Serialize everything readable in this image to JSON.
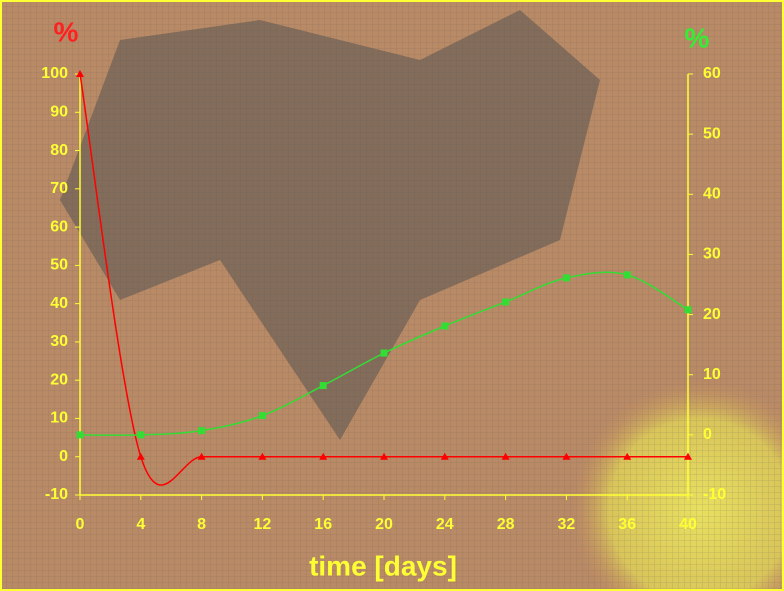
{
  "chart_data": {
    "type": "line",
    "x_label": "time [days]",
    "y_label": "%",
    "y2_label": "%",
    "x": [
      0,
      4,
      8,
      12,
      16,
      20,
      24,
      28,
      32,
      36,
      40
    ],
    "series": [
      {
        "name": "red",
        "color": "#ff0000",
        "marker": "triangle",
        "values": [
          100,
          0,
          0,
          0,
          0,
          0,
          0,
          0,
          0,
          0,
          0
        ]
      },
      {
        "name": "green",
        "color": "#33dd33",
        "marker": "square",
        "axis": "y2",
        "values": [
          0,
          0,
          0.7,
          3.2,
          8.2,
          13.6,
          18.1,
          22.1,
          26.1,
          26.6,
          20.8
        ]
      }
    ],
    "xlim": [
      0,
      40
    ],
    "xticks": [
      0,
      4,
      8,
      12,
      16,
      20,
      24,
      28,
      32,
      36,
      40
    ],
    "ylim": [
      -10,
      100
    ],
    "yticks": [
      -10,
      0,
      10,
      20,
      30,
      40,
      50,
      60,
      70,
      80,
      90,
      100
    ],
    "y2lim": [
      -10,
      60
    ],
    "y2ticks": [
      -10,
      0,
      10,
      20,
      30,
      40,
      50,
      60
    ]
  }
}
